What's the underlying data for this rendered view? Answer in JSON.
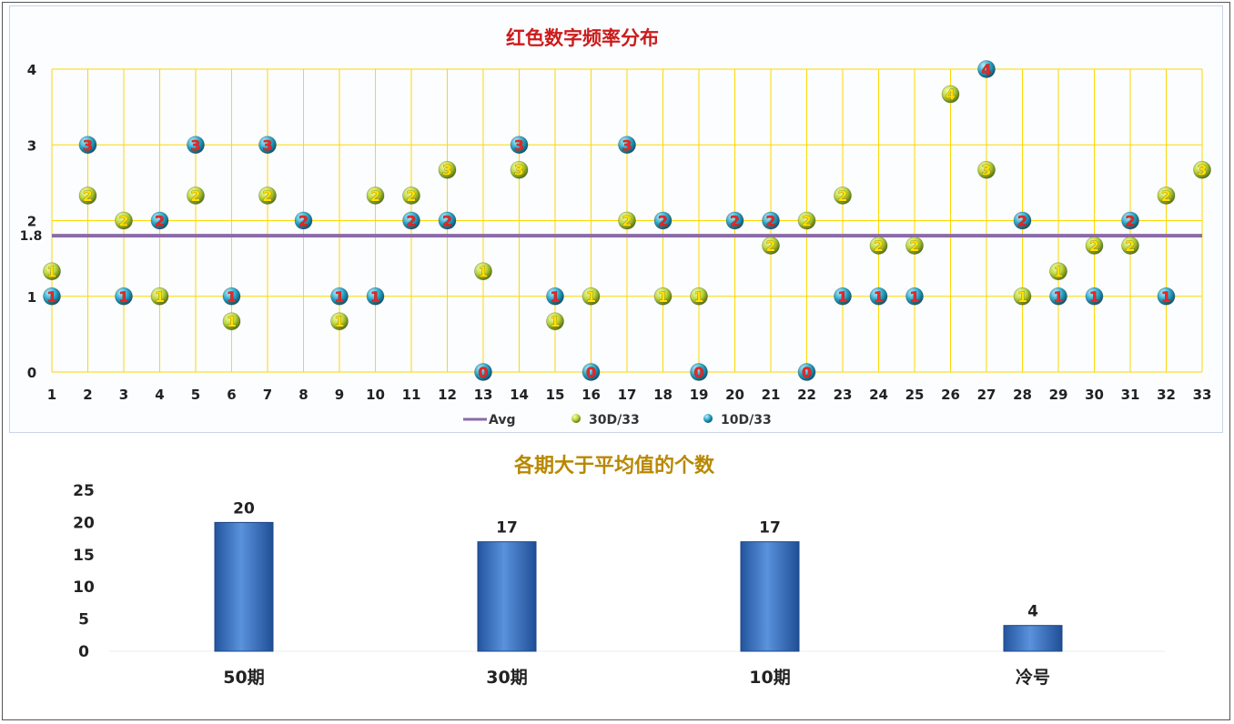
{
  "colors": {
    "grid": "#ffd800",
    "avg_line": "#8b6aa8",
    "green_ball": "#b8d43a",
    "blue_ball": "#2aa6c8",
    "label_red": "#e8262d",
    "label_yellow": "#ffe100",
    "bar": "#3a74c4",
    "title_red": "#cc1b1b",
    "title_gold": "#b88800"
  },
  "chart_data": [
    {
      "type": "scatter",
      "title": "红色数字频率分布",
      "ylim": [
        0,
        4
      ],
      "y_ticks": [
        "0",
        "1",
        "2",
        "3",
        "4"
      ],
      "x_ticks": [
        "1",
        "2",
        "3",
        "4",
        "5",
        "6",
        "7",
        "8",
        "9",
        "10",
        "11",
        "12",
        "13",
        "14",
        "15",
        "16",
        "17",
        "18",
        "19",
        "20",
        "21",
        "22",
        "23",
        "24",
        "25",
        "26",
        "27",
        "28",
        "29",
        "30",
        "31",
        "32",
        "33"
      ],
      "avg": {
        "name": "Avg",
        "value": 1.8,
        "label": "1.8"
      },
      "grid": true,
      "legend_position": "bottom",
      "series": [
        {
          "name": "30D/33",
          "color_key": "green_ball",
          "label_color_key": "label_yellow",
          "x": [
            1,
            2,
            3,
            4,
            5,
            6,
            7,
            9,
            10,
            11,
            12,
            13,
            14,
            15,
            16,
            17,
            18,
            19,
            21,
            22,
            23,
            24,
            25,
            26,
            27,
            28,
            29,
            30,
            31,
            32,
            33
          ],
          "y": [
            1.33,
            2.33,
            2,
            1,
            2.33,
            0.67,
            2.33,
            0.67,
            2.33,
            2.33,
            2.67,
            1.33,
            2.67,
            0.67,
            1,
            2,
            1,
            1,
            1.67,
            2,
            2.33,
            1.67,
            1.67,
            3.67,
            2.67,
            1,
            1.33,
            1.67,
            1.67,
            2.33,
            2.67
          ],
          "labels": [
            "1",
            "2",
            "2",
            "1",
            "2",
            "1",
            "2",
            "1",
            "2",
            "2",
            "3",
            "1",
            "3",
            "1",
            "1",
            "2",
            "1",
            "1",
            "2",
            "2",
            "2",
            "2",
            "2",
            "4",
            "3",
            "1",
            "1",
            "2",
            "2",
            "2",
            "3"
          ]
        },
        {
          "name": "10D/33",
          "color_key": "blue_ball",
          "label_color_key": "label_red",
          "x": [
            1,
            2,
            3,
            4,
            5,
            6,
            7,
            8,
            9,
            10,
            11,
            12,
            13,
            14,
            15,
            16,
            17,
            18,
            19,
            20,
            21,
            22,
            23,
            24,
            25,
            27,
            28,
            29,
            30,
            31,
            32
          ],
          "y": [
            1,
            3,
            1,
            2,
            3,
            1,
            3,
            2,
            1,
            1,
            2,
            2,
            0,
            3,
            1,
            0,
            3,
            2,
            0,
            2,
            2,
            0,
            1,
            1,
            1,
            4,
            2,
            1,
            1,
            2,
            1
          ],
          "labels": [
            "1",
            "3",
            "1",
            "2",
            "3",
            "1",
            "3",
            "2",
            "1",
            "1",
            "2",
            "2",
            "0",
            "3",
            "1",
            "0",
            "3",
            "2",
            "0",
            "2",
            "2",
            "0",
            "1",
            "1",
            "1",
            "4",
            "2",
            "1",
            "1",
            "2",
            "1"
          ]
        }
      ]
    },
    {
      "type": "bar",
      "title": "各期大于平均值的个数",
      "categories": [
        "50期",
        "30期",
        "10期",
        "冷号"
      ],
      "values": [
        20,
        17,
        17,
        4
      ],
      "value_labels": [
        "20",
        "17",
        "17",
        "4"
      ],
      "ylim": [
        0,
        25
      ],
      "y_ticks": [
        "0",
        "5",
        "10",
        "15",
        "20",
        "25"
      ]
    }
  ]
}
